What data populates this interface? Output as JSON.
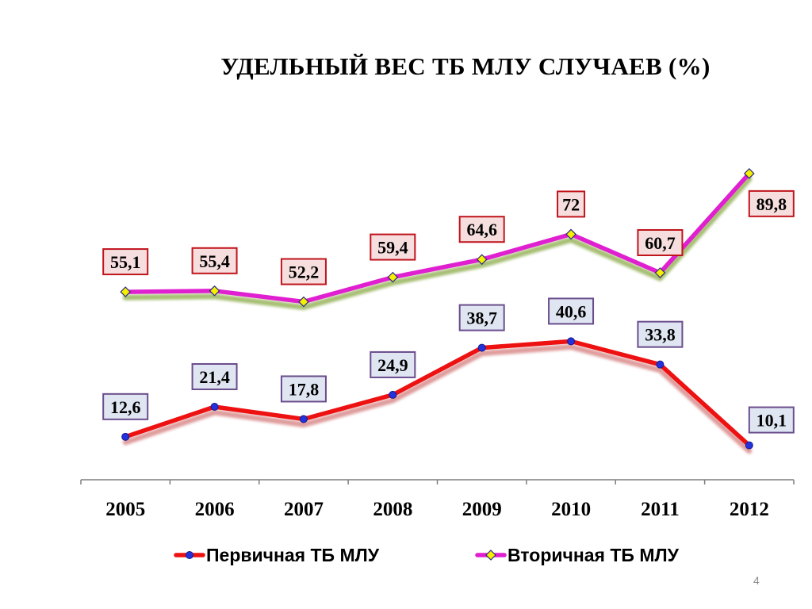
{
  "slide_number": "4",
  "chart_data": {
    "type": "line",
    "title": "УДЕЛЬНЫЙ ВЕС ТБ МЛУ СЛУЧАЕВ (%)",
    "categories": [
      "2005",
      "2006",
      "2007",
      "2008",
      "2009",
      "2010",
      "2011",
      "2012"
    ],
    "ylim": [
      0,
      100
    ],
    "grid": false,
    "legend_position": "bottom",
    "series": [
      {
        "name": "Первичная  ТБ МЛУ",
        "values": [
          12.6,
          21.4,
          17.8,
          24.9,
          38.7,
          40.6,
          33.8,
          10.1
        ],
        "labels": [
          "12,6",
          "21,4",
          "17,8",
          "24,9",
          "38,7",
          "40,6",
          "33,8",
          "10,1"
        ],
        "color": "#ee1111",
        "marker": "circle",
        "marker_color": "#2233dd",
        "label_border": "#6a4c8c",
        "label_fill": "#dfe6f2"
      },
      {
        "name": "Вторичная  ТБ МЛУ",
        "values": [
          55.1,
          55.4,
          52.2,
          59.4,
          64.6,
          72,
          60.7,
          89.8
        ],
        "labels": [
          "55,1",
          "55,4",
          "52,2",
          "59,4",
          "64,6",
          "72",
          "60,7",
          "89,8"
        ],
        "color": "#e020d0",
        "marker": "diamond",
        "marker_color": "#f5f000",
        "label_border": "#c0141c",
        "label_fill": "#f6dede"
      }
    ]
  }
}
